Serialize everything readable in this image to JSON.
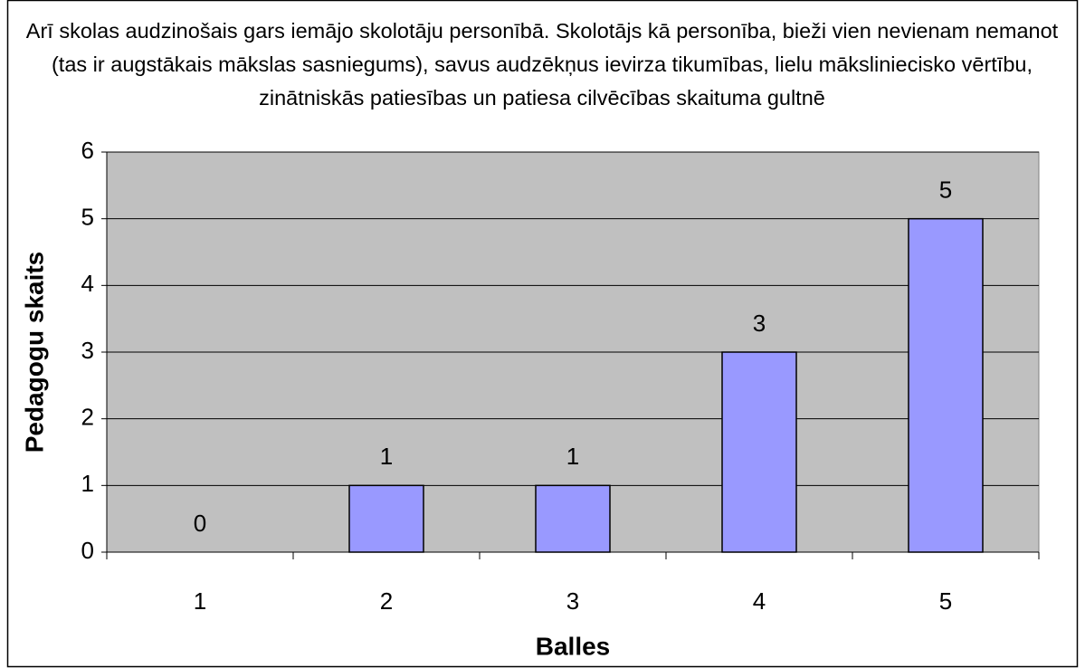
{
  "chart_data": {
    "type": "bar",
    "title": "Arī skolas audzinošais gars iemājo skolotāju personībā. Skolotājs kā personība, bieži vien nevienam nemanot (tas ir augstākais mākslas sasniegums), savus audzēkņus ievirza tikumības, lielu māksliniecisko vērtību, zinātniskās patiesības un patiesa cilvēcības skaituma gultnē",
    "x_label": "Balles",
    "y_label": "Pedagogu skaits",
    "categories": [
      "1",
      "2",
      "3",
      "4",
      "5"
    ],
    "values": [
      0,
      1,
      1,
      3,
      5
    ],
    "color": "#9999ff",
    "ylim": [
      0,
      6
    ],
    "yticks": [
      0,
      1,
      2,
      3,
      4,
      5,
      6
    ],
    "grid": true
  }
}
